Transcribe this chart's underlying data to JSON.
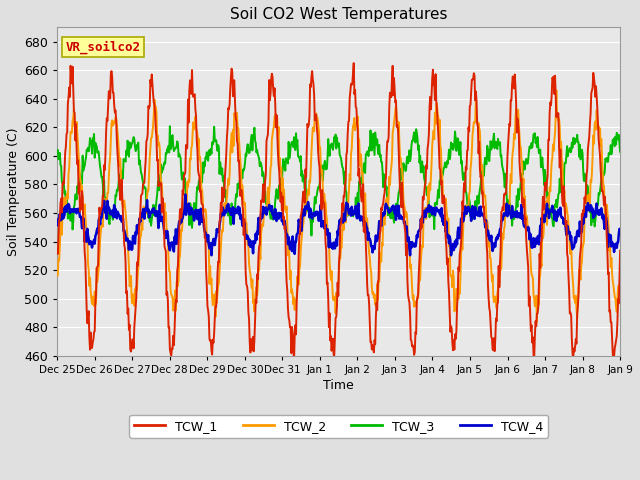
{
  "title": "Soil CO2 West Temperatures",
  "xlabel": "Time",
  "ylabel": "Soil Temperature (C)",
  "ylim": [
    460,
    690
  ],
  "yticks": [
    460,
    480,
    500,
    520,
    540,
    560,
    580,
    600,
    620,
    640,
    660,
    680
  ],
  "annotation_text": "VR_soilco2",
  "annotation_color": "#cc0000",
  "annotation_bg": "#ffff99",
  "annotation_border": "#aaa800",
  "colors": {
    "TCW_1": "#dd2200",
    "TCW_2": "#ff9900",
    "TCW_3": "#00bb00",
    "TCW_4": "#0000cc"
  },
  "bg_color": "#e8e8e8",
  "grid_color": "#ffffff",
  "x_tick_labels": [
    "Dec 25",
    "Dec 26",
    "Dec 27",
    "Dec 28",
    "Dec 29",
    "Dec 30",
    "Dec 31",
    "Jan 1",
    "Jan 2",
    "Jan 3",
    "Jan 4",
    "Jan 5",
    "Jan 6",
    "Jan 7",
    "Jan 8",
    "Jan 9"
  ],
  "days": 14,
  "n_points": 840
}
